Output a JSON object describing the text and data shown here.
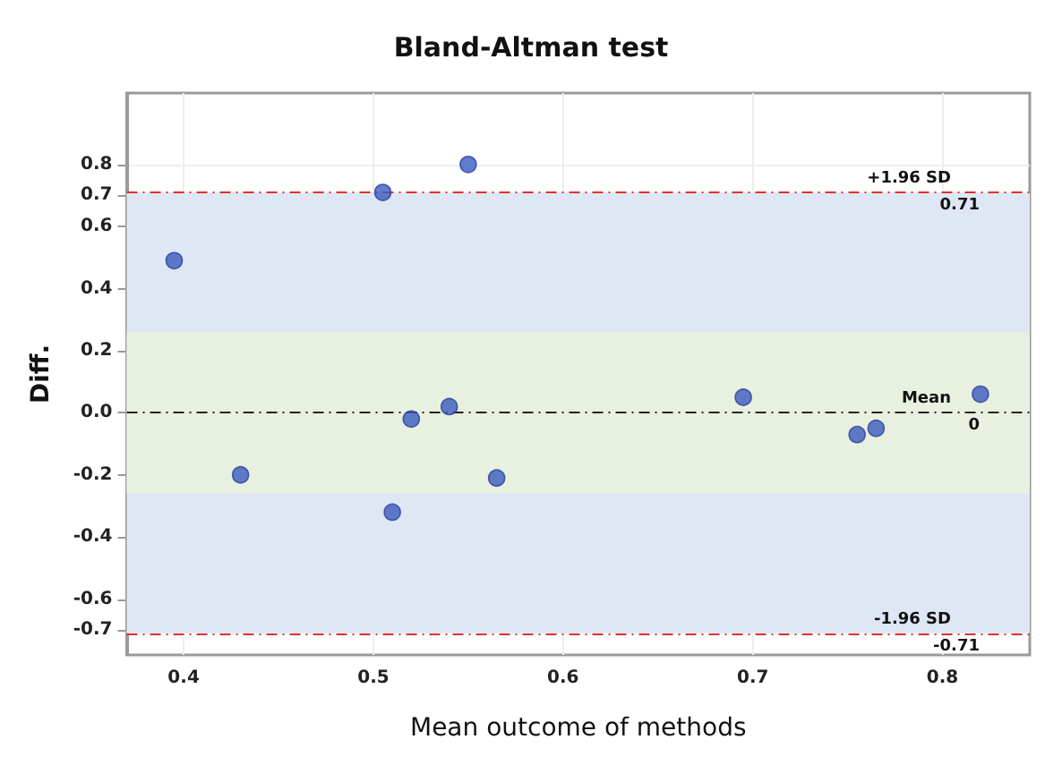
{
  "chart_data": {
    "type": "scatter",
    "title": "Bland-Altman test",
    "xlabel": "Mean outcome of methods",
    "ylabel": "Diff.",
    "x": [
      0.395,
      0.43,
      0.505,
      0.55,
      0.51,
      0.52,
      0.54,
      0.565,
      0.695,
      0.755,
      0.765,
      0.82
    ],
    "series": [
      {
        "color": "#3a5bbf",
        "values": [
          0.49,
          -0.2,
          0.71,
          0.8,
          -0.32,
          -0.02,
          0.02,
          -0.21,
          0.05,
          -0.07,
          -0.05,
          0.06
        ]
      }
    ],
    "xlim": [
      0.37,
      0.846
    ],
    "xticks": [
      0.4,
      0.5,
      0.6,
      0.7,
      0.8
    ],
    "ylim": [
      -0.78,
      1.03
    ],
    "yticks": [
      -0.7,
      -0.6,
      -0.4,
      -0.2,
      {
        "value": 0,
        "label": "0.0"
      },
      0.2,
      0.4,
      0.6,
      0.7,
      0.8
    ],
    "bands": [
      {
        "axis": "y",
        "from": -0.71,
        "to": 0.71,
        "color": "#dfe6f4"
      },
      {
        "axis": "y",
        "from": -0.26,
        "to": 0.26,
        "color": "#e8f1df"
      }
    ],
    "ref_lines": [
      {
        "axis": "y",
        "value": 0.71,
        "label": "+1.96 SD",
        "color": "#e03030",
        "line_style": "dashed"
      },
      {
        "axis": "y",
        "value": 0,
        "label": "Mean",
        "color": "#222222",
        "line_style": "dashed"
      },
      {
        "axis": "y",
        "value": -0.71,
        "label": "-1.96 SD",
        "color": "#e03030",
        "line_style": "dashed"
      }
    ],
    "annotations": [
      "0.71",
      "0",
      "-0.71"
    ],
    "grid": true,
    "marker": "circle"
  }
}
